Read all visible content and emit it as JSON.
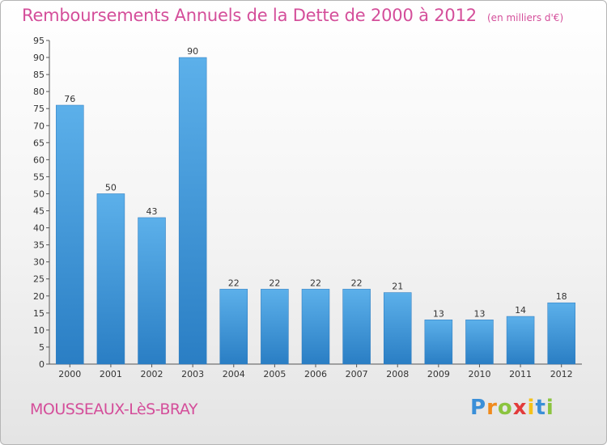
{
  "header": {
    "title": "Remboursements Annuels de la Dette de 2000 à 2012",
    "subtitle": "(en milliers d'€)"
  },
  "footer": {
    "commune": "MOUSSEAUX-LèS-BRAY",
    "logo_text": "Proxiti",
    "logo_letters": [
      "P",
      "r",
      "o",
      "x",
      "i",
      "t",
      "i"
    ]
  },
  "colors": {
    "title": "#d44e9a",
    "bar_light": "#5aaee9",
    "bar_dark": "#2a7ec4"
  },
  "chart_data": {
    "type": "bar",
    "title": "Remboursements Annuels de la Dette de 2000 à 2012",
    "subtitle": "(en milliers d'€)",
    "categories": [
      "2000",
      "2001",
      "2002",
      "2003",
      "2004",
      "2005",
      "2006",
      "2007",
      "2008",
      "2009",
      "2010",
      "2011",
      "2012"
    ],
    "values": [
      76,
      50,
      43,
      90,
      22,
      22,
      22,
      22,
      21,
      13,
      13,
      14,
      18
    ],
    "ylim": [
      0,
      95
    ],
    "yticks": [
      0,
      5,
      10,
      15,
      20,
      25,
      30,
      35,
      40,
      45,
      50,
      55,
      60,
      65,
      70,
      75,
      80,
      85,
      90,
      95
    ],
    "grid": false,
    "data_labels": true
  }
}
